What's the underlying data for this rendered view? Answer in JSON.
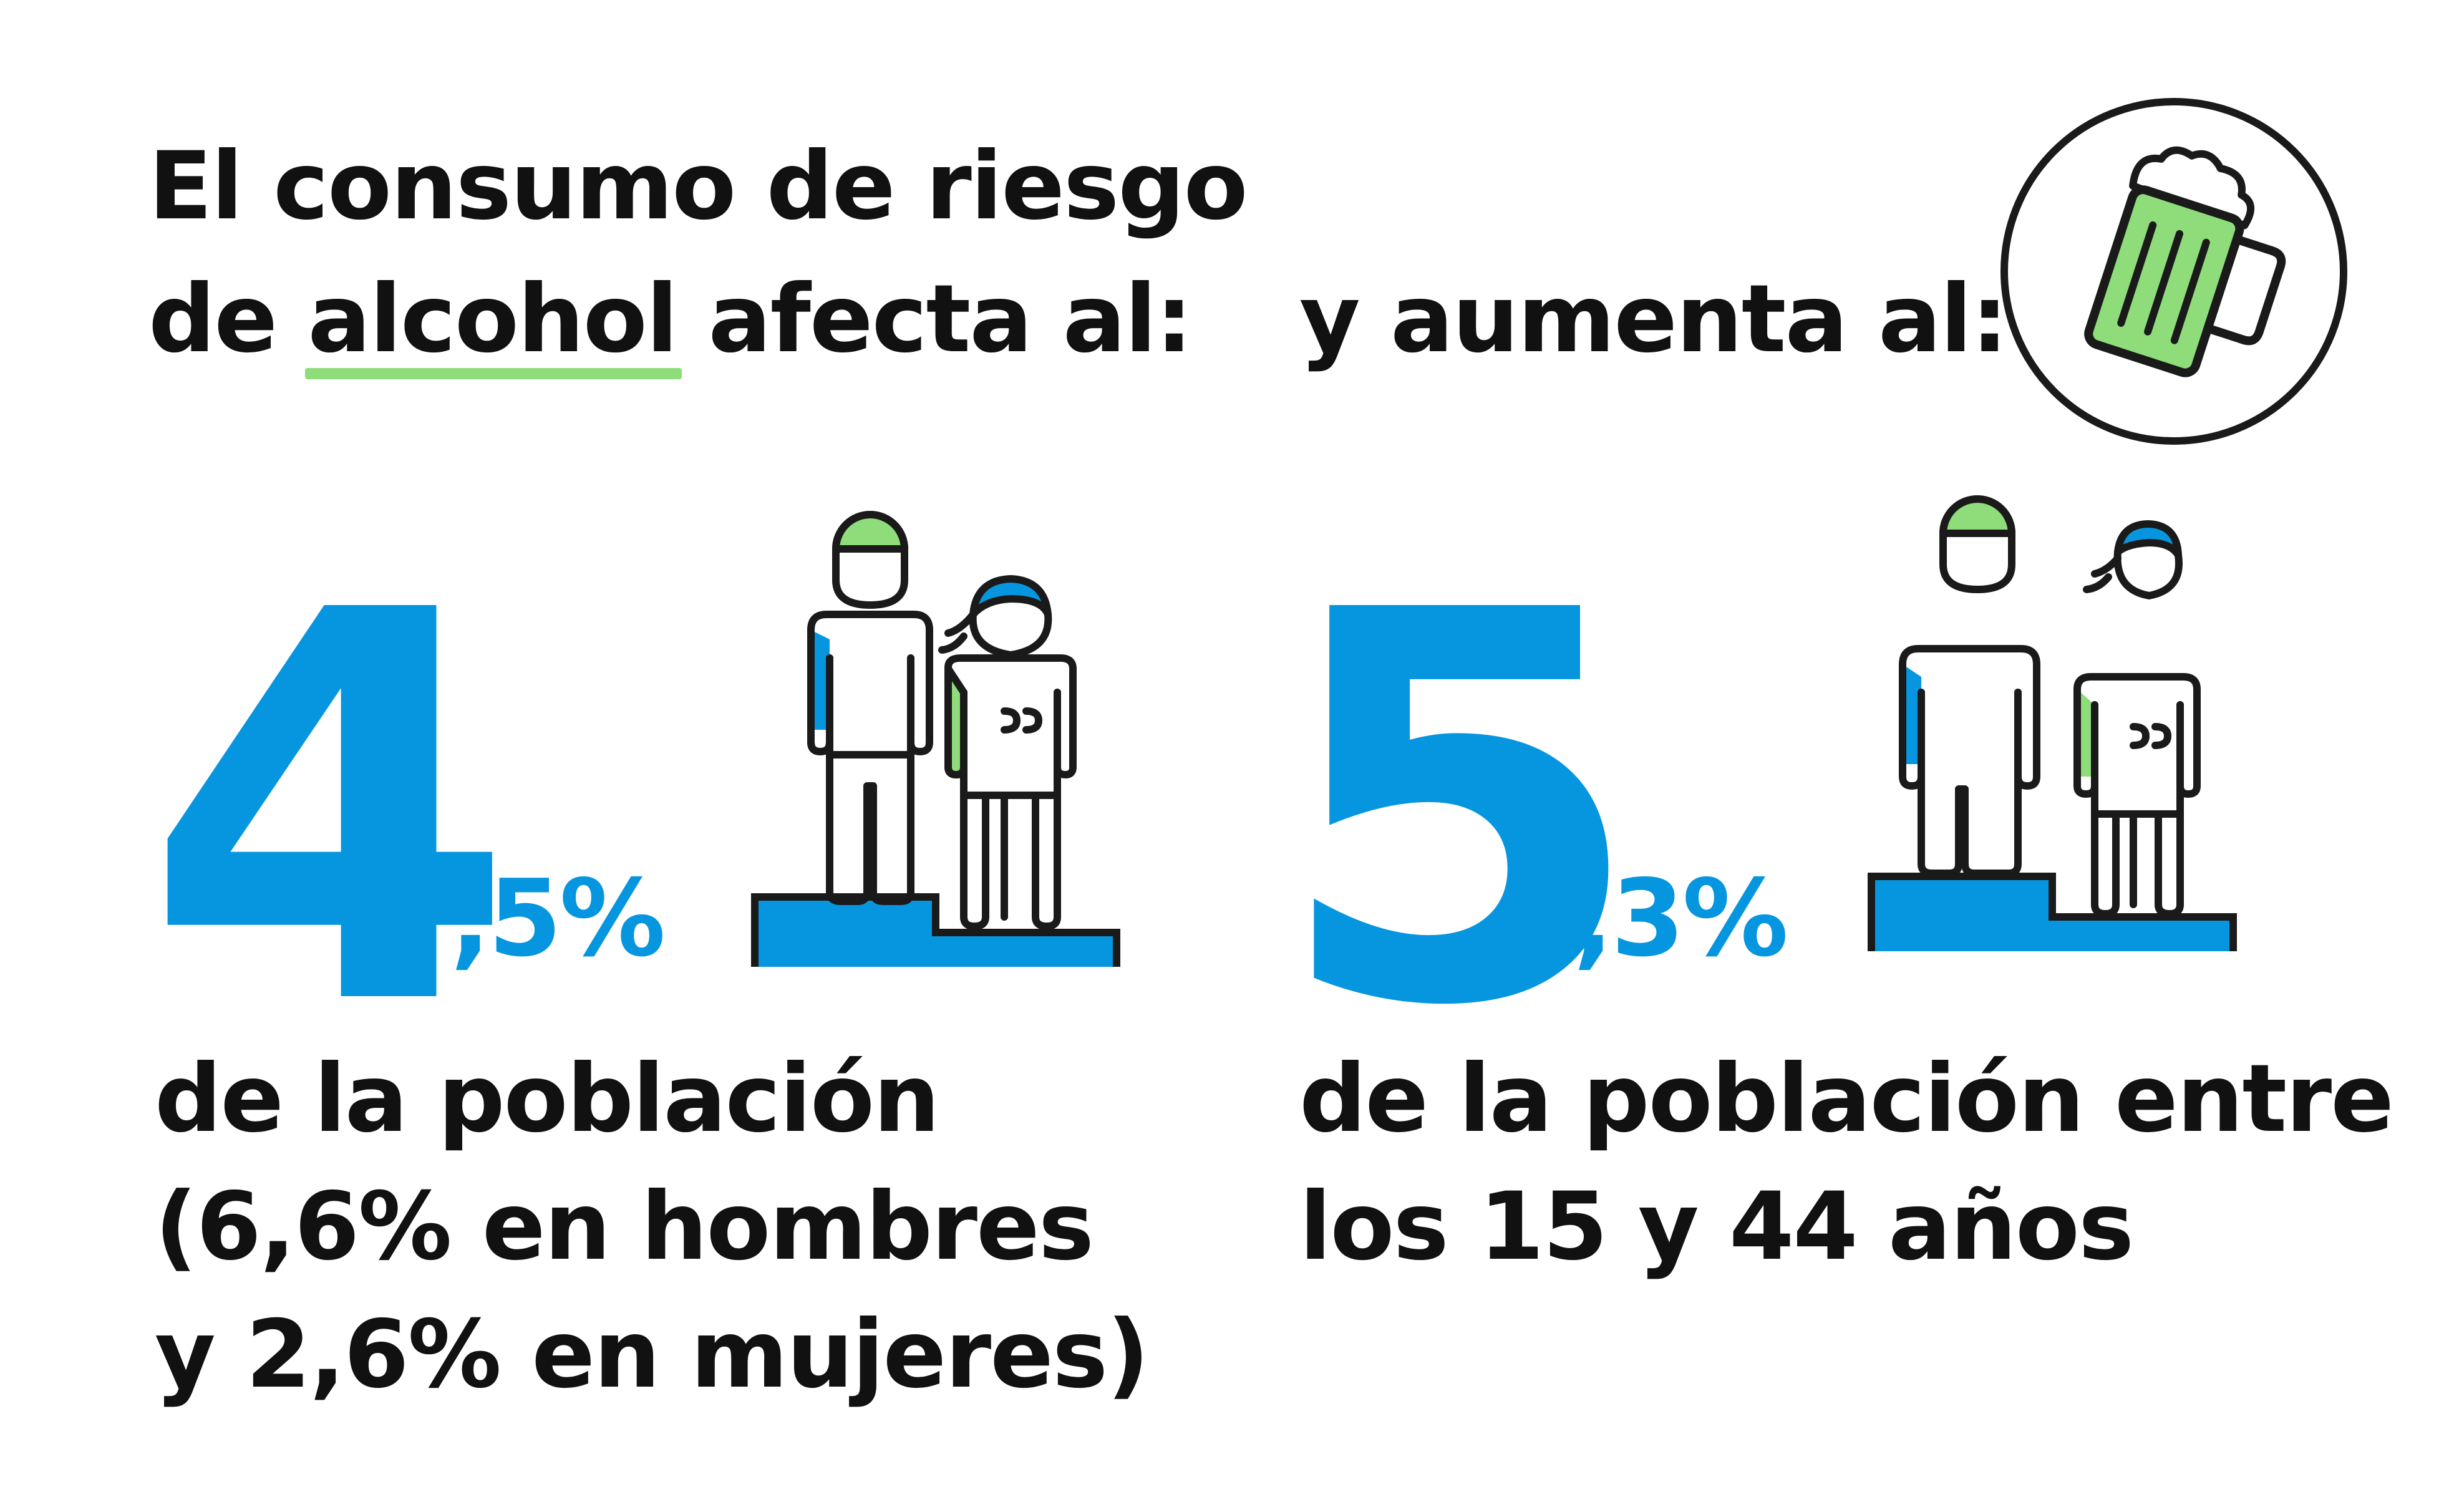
{
  "left": {
    "headline_line1": "El consumo de riesgo",
    "headline_line2_pre": "de ",
    "headline_line2_highlight": "alcohol",
    "headline_line2_post": " afecta al:",
    "stat_integer": "4",
    "stat_decimal": ",5%",
    "caption_line1": "de la población",
    "caption_line2": "(6,6% en hombres",
    "caption_line3": "y 2,6% en mujeres)"
  },
  "right": {
    "headline": "y aumenta al:",
    "stat_integer": "5",
    "stat_decimal": ",3%",
    "caption_line1": "de la población entre",
    "caption_line2": "los 15 y 44 años"
  },
  "icons": {
    "beer": "beer-mug-icon",
    "people_left": "people-on-steps-icon",
    "people_right": "people-on-steps-icon"
  },
  "colors": {
    "blue": "#0696df",
    "green": "#8edc7a",
    "text": "#111111",
    "outline": "#1a1a1a"
  }
}
